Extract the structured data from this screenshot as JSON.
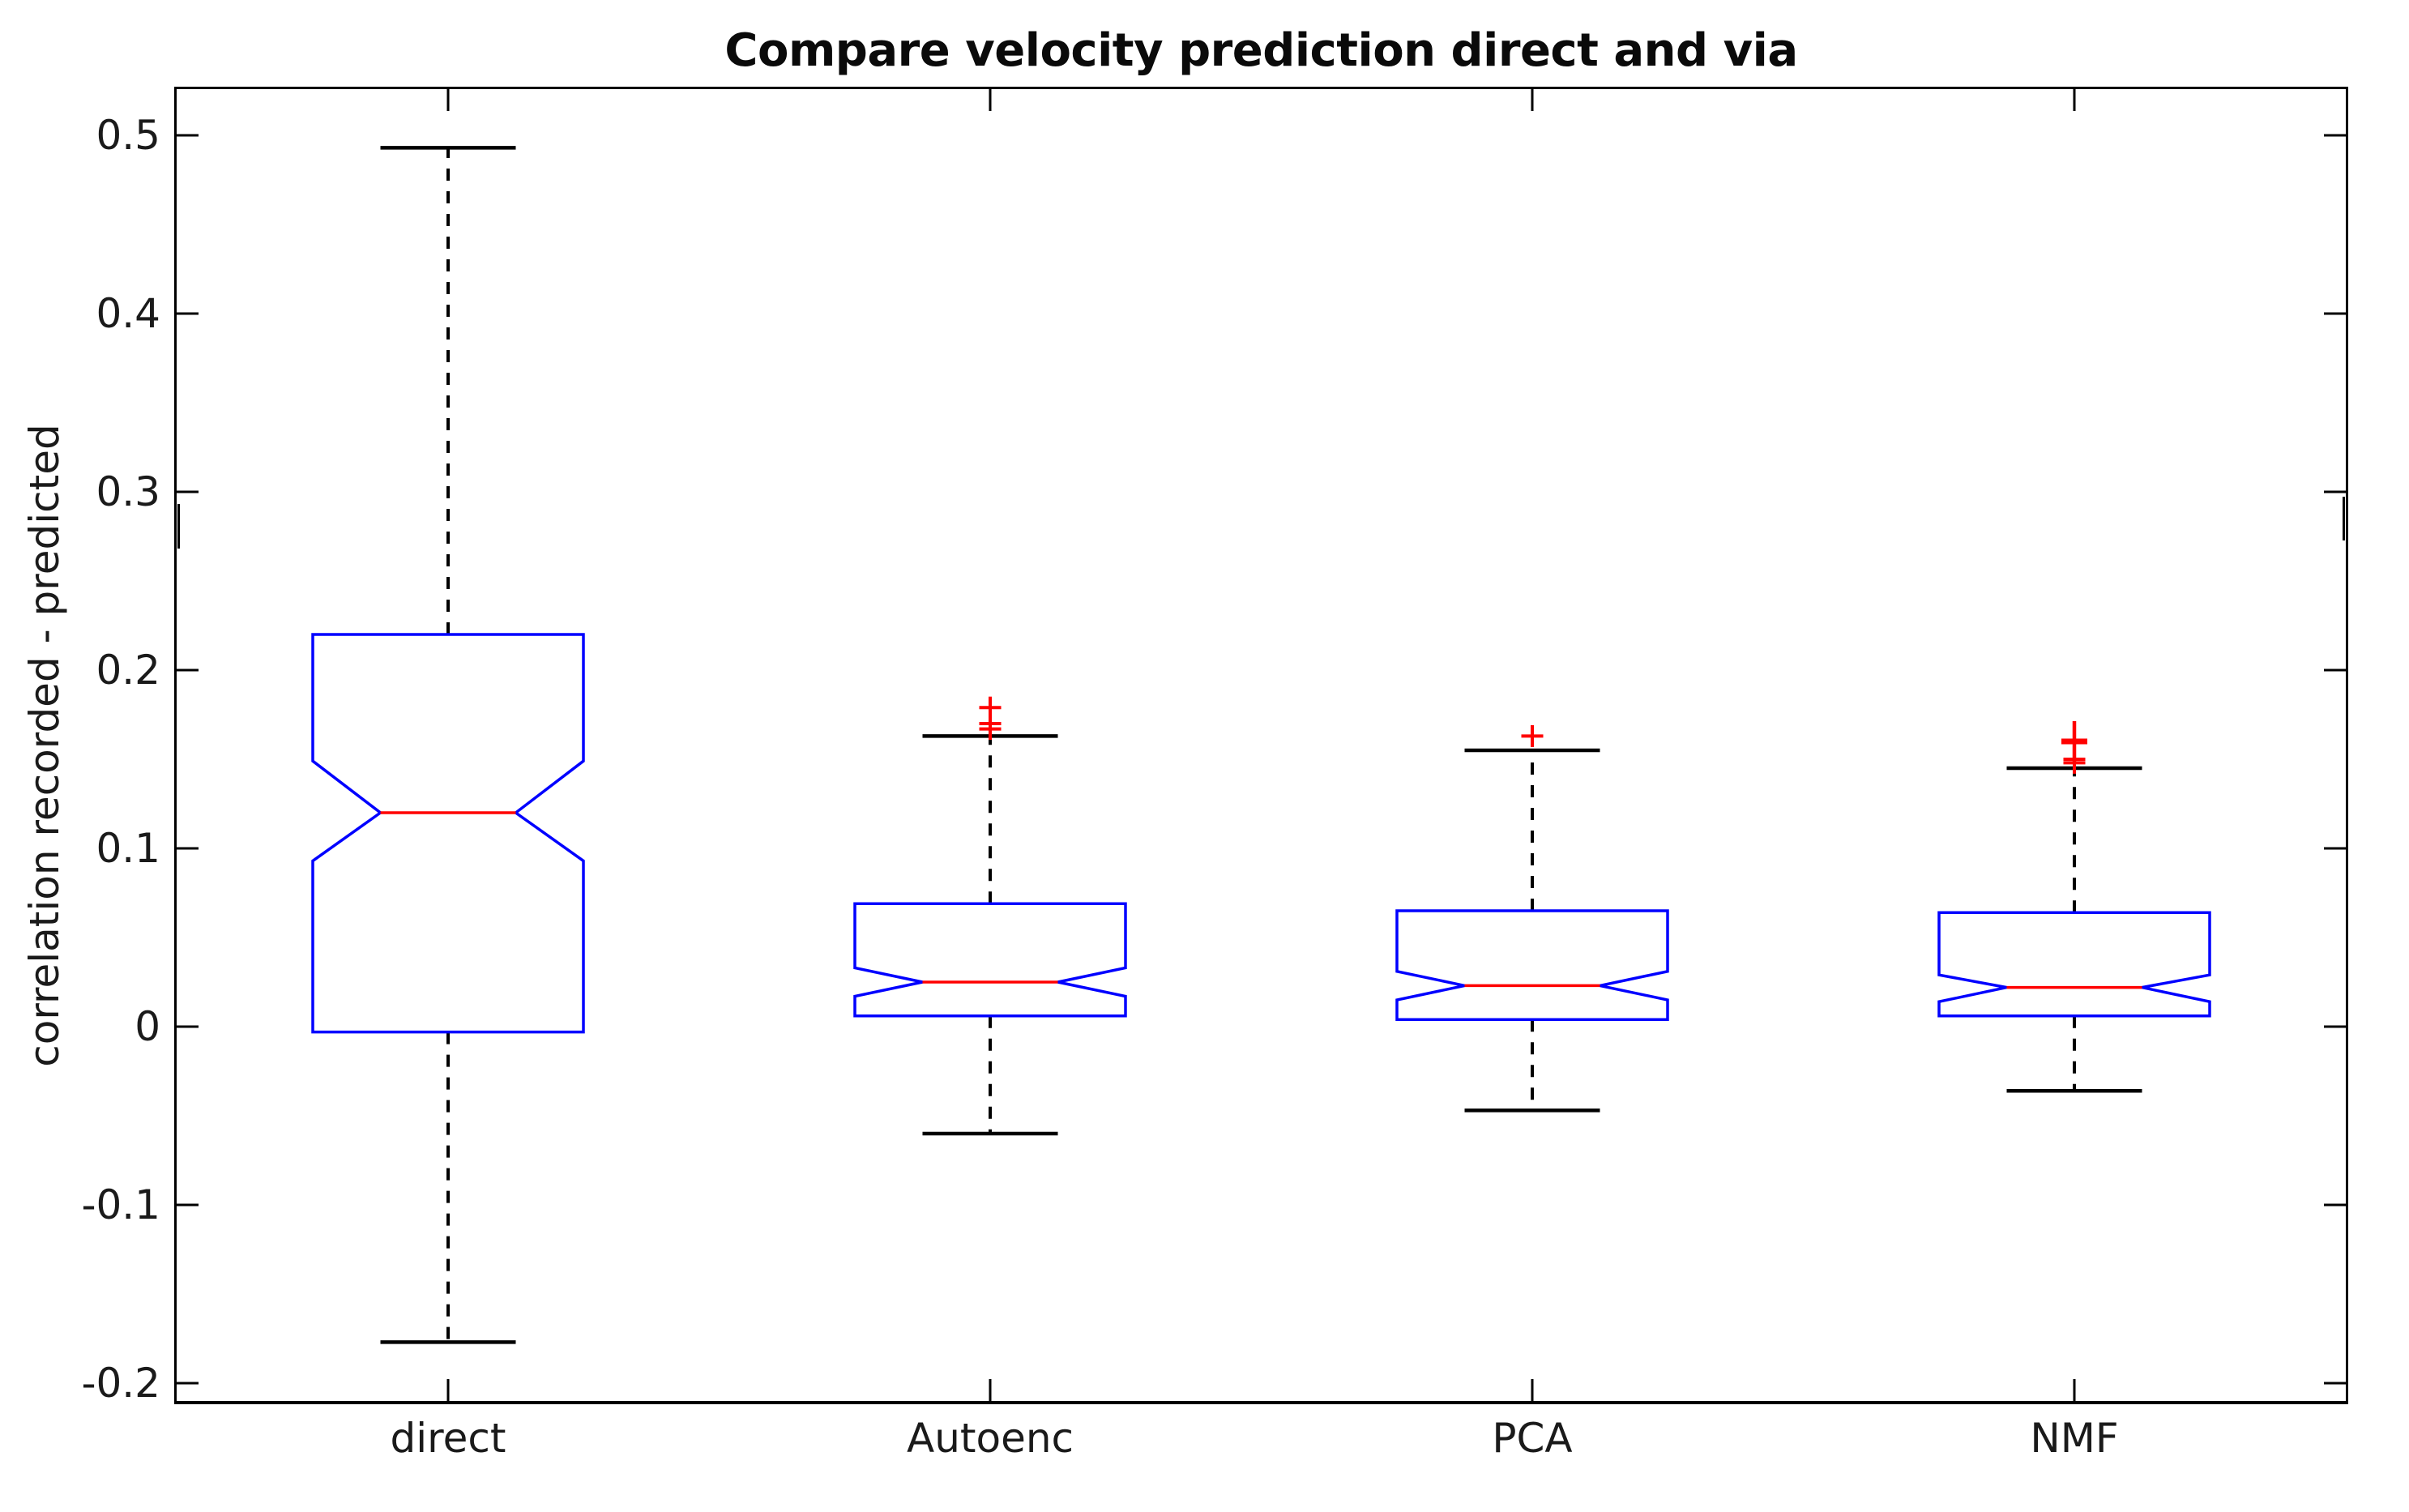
{
  "title": "Compare velocity prediction direct and via",
  "ylabel": "correlation recorded - predicted",
  "colors": {
    "box": "#0000ff",
    "median": "#ff0000",
    "outlier": "#ff0000",
    "whisker": "#000000",
    "axis": "#000000",
    "text": "#1a1a1a"
  },
  "chart_data": {
    "type": "boxplot",
    "notched": true,
    "title": "Compare velocity prediction direct and via",
    "xlabel": "",
    "ylabel": "correlation recorded - predicted",
    "ylim": [
      -0.21,
      0.526
    ],
    "grid": false,
    "yticks": [
      {
        "value": 0.5,
        "label": "0.5"
      },
      {
        "value": 0.4,
        "label": "0.4"
      },
      {
        "value": 0.3,
        "label": "0.3"
      },
      {
        "value": 0.2,
        "label": "0.2"
      },
      {
        "value": 0.1,
        "label": "0.1"
      },
      {
        "value": 0.0,
        "label": "0"
      },
      {
        "value": -0.1,
        "label": "-0.1"
      },
      {
        "value": -0.2,
        "label": "-0.2"
      }
    ],
    "categories": [
      "direct",
      "Autoenc",
      "PCA",
      "NMF"
    ],
    "series": [
      {
        "name": "direct",
        "whisker_low": -0.177,
        "q1": -0.003,
        "median": 0.12,
        "q3": 0.22,
        "whisker_high": 0.493,
        "notch_low": 0.093,
        "notch_high": 0.149,
        "outliers": []
      },
      {
        "name": "Autoenc",
        "whisker_low": -0.06,
        "q1": 0.006,
        "median": 0.025,
        "q3": 0.069,
        "whisker_high": 0.163,
        "notch_low": 0.017,
        "notch_high": 0.033,
        "outliers": [
          {
            "value": 0.179
          },
          {
            "value": 0.17
          },
          {
            "value": 0.167
          }
        ]
      },
      {
        "name": "PCA",
        "whisker_low": -0.047,
        "q1": 0.004,
        "median": 0.023,
        "q3": 0.065,
        "whisker_high": 0.155,
        "notch_low": 0.015,
        "notch_high": 0.031,
        "outliers": [
          {
            "value": 0.163
          }
        ]
      },
      {
        "name": "NMF",
        "whisker_low": -0.036,
        "q1": 0.006,
        "median": 0.022,
        "q3": 0.064,
        "whisker_high": 0.145,
        "notch_low": 0.014,
        "notch_high": 0.029,
        "outliers": [
          {
            "value": 0.16,
            "emphasis": "bold"
          },
          {
            "value": 0.15
          },
          {
            "value": 0.148
          }
        ]
      }
    ]
  }
}
